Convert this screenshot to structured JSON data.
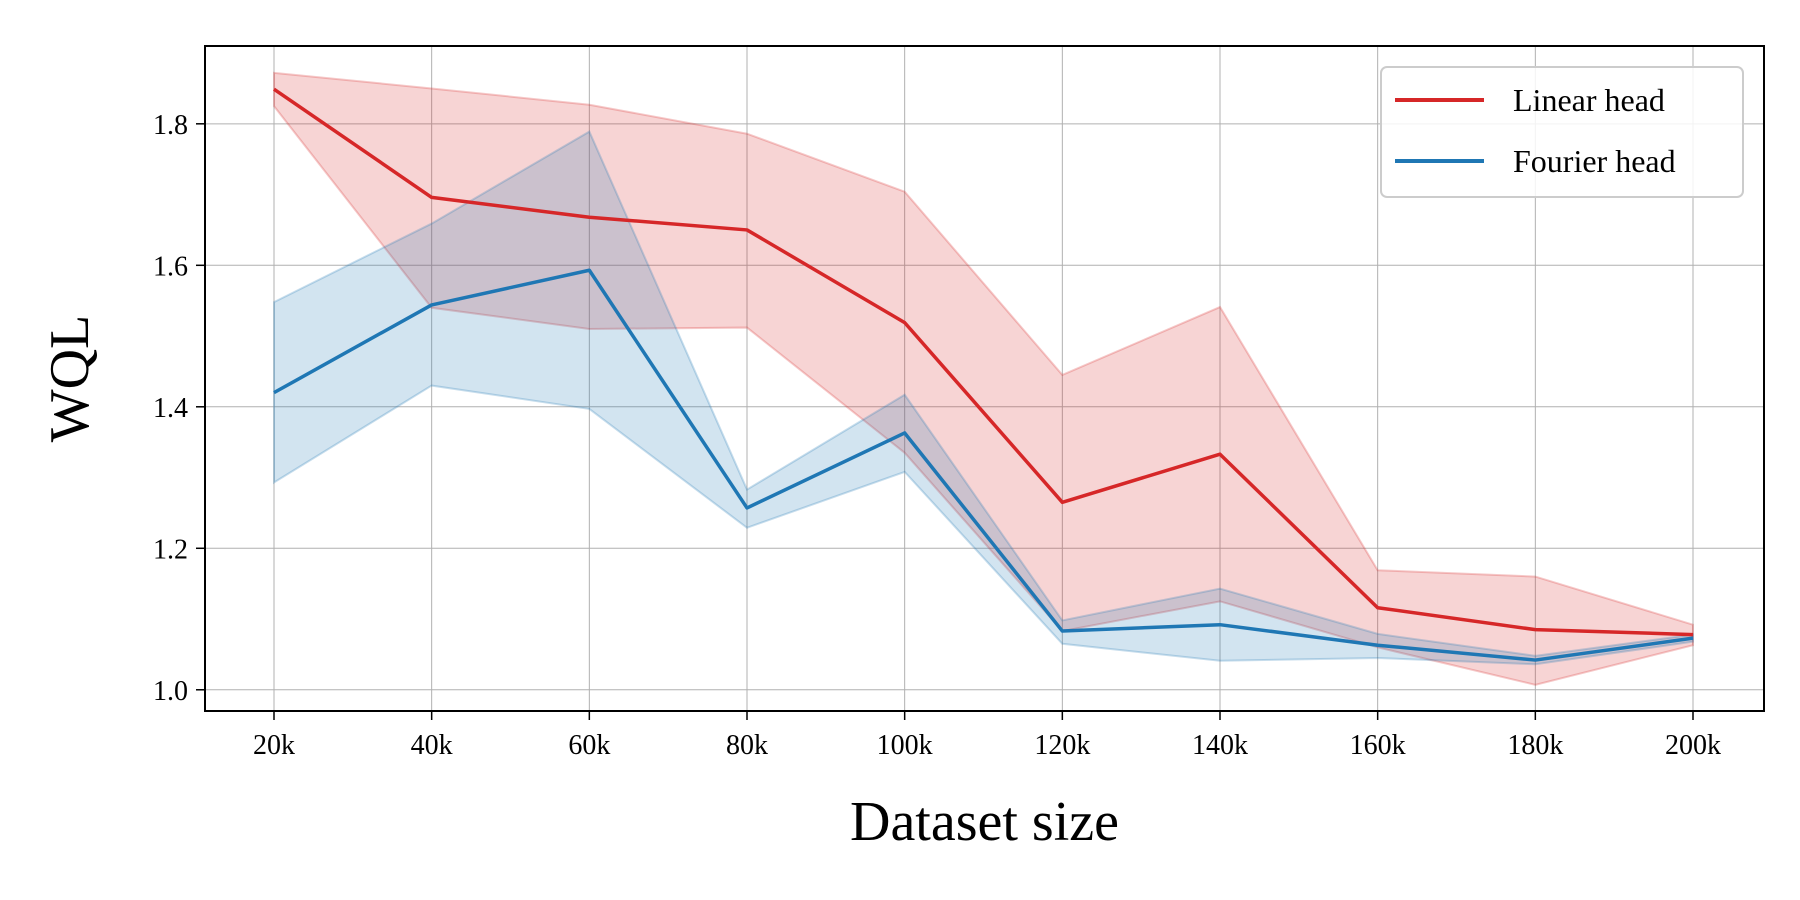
{
  "chart_data": {
    "type": "line",
    "title": "",
    "xlabel": "Dataset size",
    "ylabel": "WQL",
    "categories": [
      "20k",
      "40k",
      "60k",
      "80k",
      "100k",
      "120k",
      "140k",
      "160k",
      "180k",
      "200k"
    ],
    "yticks": [
      "1.0",
      "1.2",
      "1.4",
      "1.6",
      "1.8"
    ],
    "ylim": [
      0.97,
      1.91
    ],
    "grid": true,
    "legend_position": "top-right",
    "series": [
      {
        "name": "Linear head",
        "color": "#d62728",
        "values": [
          1.849,
          1.696,
          1.668,
          1.65,
          1.519,
          1.265,
          1.333,
          1.116,
          1.085,
          1.078
        ],
        "lower": [
          1.825,
          1.54,
          1.51,
          1.512,
          1.335,
          1.083,
          1.125,
          1.06,
          1.007,
          1.063
        ],
        "upper": [
          1.872,
          1.85,
          1.827,
          1.786,
          1.704,
          1.445,
          1.541,
          1.169,
          1.16,
          1.092
        ]
      },
      {
        "name": "Fourier head",
        "color": "#1f77b4",
        "values": [
          1.42,
          1.544,
          1.593,
          1.257,
          1.363,
          1.083,
          1.092,
          1.063,
          1.042,
          1.073
        ],
        "lower": [
          1.293,
          1.43,
          1.397,
          1.229,
          1.308,
          1.065,
          1.041,
          1.045,
          1.036,
          1.068
        ],
        "upper": [
          1.548,
          1.659,
          1.789,
          1.283,
          1.417,
          1.098,
          1.143,
          1.079,
          1.048,
          1.078
        ]
      }
    ]
  }
}
